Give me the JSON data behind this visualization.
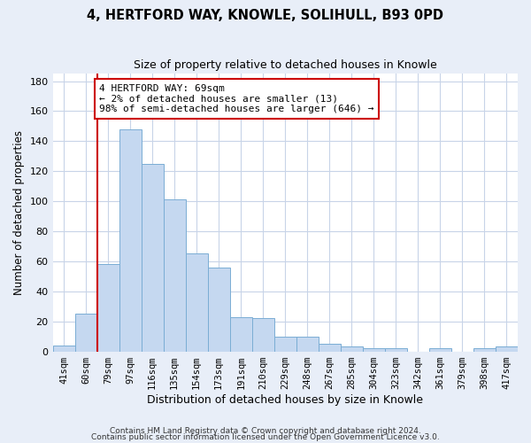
{
  "title": "4, HERTFORD WAY, KNOWLE, SOLIHULL, B93 0PD",
  "subtitle": "Size of property relative to detached houses in Knowle",
  "xlabel": "Distribution of detached houses by size in Knowle",
  "ylabel": "Number of detached properties",
  "bar_labels": [
    "41sqm",
    "60sqm",
    "79sqm",
    "97sqm",
    "116sqm",
    "135sqm",
    "154sqm",
    "173sqm",
    "191sqm",
    "210sqm",
    "229sqm",
    "248sqm",
    "267sqm",
    "285sqm",
    "304sqm",
    "323sqm",
    "342sqm",
    "361sqm",
    "379sqm",
    "398sqm",
    "417sqm"
  ],
  "bar_values": [
    4,
    25,
    58,
    148,
    125,
    101,
    65,
    56,
    23,
    22,
    10,
    10,
    5,
    3,
    2,
    2,
    0,
    2,
    0,
    2,
    3
  ],
  "bar_color": "#c5d8f0",
  "bar_edge_color": "#7aadd4",
  "vline_color": "#cc0000",
  "annotation_text": "4 HERTFORD WAY: 69sqm\n← 2% of detached houses are smaller (13)\n98% of semi-detached houses are larger (646) →",
  "annotation_box_color": "#ffffff",
  "annotation_box_edge": "#cc0000",
  "ylim": [
    0,
    185
  ],
  "yticks": [
    0,
    20,
    40,
    60,
    80,
    100,
    120,
    140,
    160,
    180
  ],
  "footer1": "Contains HM Land Registry data © Crown copyright and database right 2024.",
  "footer2": "Contains public sector information licensed under the Open Government Licence v3.0.",
  "bg_color": "#e8eef8",
  "plot_bg_color": "#ffffff",
  "grid_color": "#c8d4e8"
}
